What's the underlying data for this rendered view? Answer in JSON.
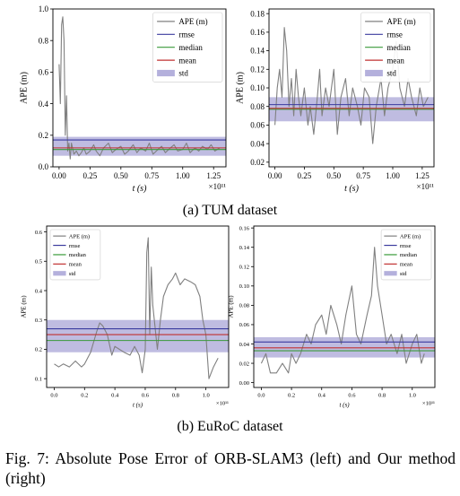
{
  "subcaptions": {
    "a": "(a) TUM dataset",
    "b": "(b) EuRoC dataset"
  },
  "figure_caption": "Fig. 7: Absolute Pose Error of ORB-SLAM3 (left) and Our method (right)",
  "colors": {
    "ape": "#808080",
    "rmse": "#3b3b9f",
    "median": "#3a9a3a",
    "mean": "#c03030",
    "std": "#b4b0dc",
    "axis": "#000000"
  },
  "chart_data": [
    {
      "type": "line",
      "panel": "TUM dataset - ORB-SLAM3 (left)",
      "ylabel": "APE (m)",
      "xlabel": "t (s)",
      "x_multiplier": "×10¹¹",
      "xlim": [
        -0.05,
        1.35
      ],
      "ylim": [
        0,
        1.0
      ],
      "xticks": [
        0.0,
        0.25,
        0.5,
        0.75,
        1.0,
        1.25
      ],
      "xtick_labels": [
        "0.00",
        "0.25",
        "0.50",
        "0.75",
        "1.00",
        "1.25"
      ],
      "yticks": [
        0.0,
        0.2,
        0.4,
        0.6,
        0.8,
        1.0
      ],
      "ytick_labels": [
        "0.0",
        "0.2",
        "0.4",
        "0.6",
        "0.8",
        "1.0"
      ],
      "legend": [
        "APE (m)",
        "rmse",
        "median",
        "mean",
        "std"
      ],
      "legend_position": "top-right",
      "stats": {
        "rmse": 0.17,
        "median": 0.11,
        "mean": 0.12,
        "std_low": 0.07,
        "std_high": 0.19
      },
      "series": [
        {
          "x": [
            0.0,
            0.01,
            0.02,
            0.03,
            0.04,
            0.05,
            0.06,
            0.07,
            0.08,
            0.09,
            0.1,
            0.12,
            0.14,
            0.16,
            0.18,
            0.2,
            0.22,
            0.25,
            0.28,
            0.3,
            0.33,
            0.36,
            0.4,
            0.43,
            0.46,
            0.5,
            0.53,
            0.56,
            0.6,
            0.63,
            0.66,
            0.7,
            0.73,
            0.76,
            0.8,
            0.83,
            0.86,
            0.9,
            0.93,
            0.96,
            1.0,
            1.03,
            1.06,
            1.1,
            1.13,
            1.16,
            1.2,
            1.23,
            1.26,
            1.3
          ],
          "y": [
            0.65,
            0.4,
            0.9,
            0.95,
            0.8,
            0.2,
            0.45,
            0.1,
            0.15,
            0.05,
            0.15,
            0.08,
            0.1,
            0.07,
            0.09,
            0.12,
            0.08,
            0.1,
            0.14,
            0.1,
            0.07,
            0.12,
            0.15,
            0.09,
            0.11,
            0.13,
            0.08,
            0.1,
            0.14,
            0.09,
            0.12,
            0.1,
            0.15,
            0.08,
            0.11,
            0.13,
            0.09,
            0.12,
            0.14,
            0.1,
            0.11,
            0.15,
            0.09,
            0.12,
            0.1,
            0.13,
            0.11,
            0.14,
            0.1,
            0.12
          ]
        }
      ]
    },
    {
      "type": "line",
      "panel": "TUM dataset - Our method (right)",
      "ylabel": "APE (m)",
      "xlabel": "t (s)",
      "x_multiplier": "×10¹¹",
      "xlim": [
        -0.05,
        1.35
      ],
      "ylim": [
        0.015,
        0.185
      ],
      "xticks": [
        0.0,
        0.25,
        0.5,
        0.75,
        1.0,
        1.25
      ],
      "xtick_labels": [
        "0.00",
        "0.25",
        "0.50",
        "0.75",
        "1.00",
        "1.25"
      ],
      "yticks": [
        0.02,
        0.04,
        0.06,
        0.08,
        0.1,
        0.12,
        0.14,
        0.16,
        0.18
      ],
      "ytick_labels": [
        "0.02",
        "0.04",
        "0.06",
        "0.08",
        "0.10",
        "0.12",
        "0.14",
        "0.16",
        "0.18"
      ],
      "legend": [
        "APE (m)",
        "rmse",
        "median",
        "mean",
        "std"
      ],
      "legend_position": "top-right",
      "stats": {
        "rmse": 0.082,
        "median": 0.077,
        "mean": 0.078,
        "std_low": 0.064,
        "std_high": 0.09
      },
      "series": [
        {
          "x": [
            0.0,
            0.02,
            0.04,
            0.06,
            0.08,
            0.1,
            0.12,
            0.14,
            0.16,
            0.18,
            0.2,
            0.22,
            0.25,
            0.28,
            0.3,
            0.33,
            0.36,
            0.38,
            0.4,
            0.43,
            0.46,
            0.5,
            0.53,
            0.56,
            0.6,
            0.63,
            0.66,
            0.7,
            0.73,
            0.76,
            0.8,
            0.83,
            0.86,
            0.9,
            0.93,
            0.96,
            1.0,
            1.03,
            1.06,
            1.1,
            1.13,
            1.16,
            1.2,
            1.23,
            1.26,
            1.3
          ],
          "y": [
            0.06,
            0.1,
            0.12,
            0.09,
            0.165,
            0.14,
            0.08,
            0.11,
            0.07,
            0.12,
            0.09,
            0.07,
            0.1,
            0.06,
            0.08,
            0.05,
            0.09,
            0.12,
            0.07,
            0.1,
            0.08,
            0.12,
            0.05,
            0.09,
            0.11,
            0.07,
            0.1,
            0.08,
            0.06,
            0.1,
            0.09,
            0.04,
            0.08,
            0.11,
            0.07,
            0.1,
            0.12,
            0.15,
            0.1,
            0.08,
            0.11,
            0.09,
            0.07,
            0.1,
            0.08,
            0.09
          ]
        }
      ]
    },
    {
      "type": "line",
      "panel": "EuRoC dataset - ORB-SLAM3 (left)",
      "ylabel": "APE (m)",
      "xlabel": "t (s)",
      "x_multiplier": "×10¹¹",
      "xlim": [
        -0.05,
        1.15
      ],
      "ylim": [
        0.07,
        0.62
      ],
      "xticks": [
        0.0,
        0.2,
        0.4,
        0.6,
        0.8,
        1.0
      ],
      "xtick_labels": [
        "0.0",
        "0.2",
        "0.4",
        "0.6",
        "0.8",
        "1.0"
      ],
      "yticks": [
        0.1,
        0.2,
        0.3,
        0.4,
        0.5,
        0.6
      ],
      "ytick_labels": [
        "0.1",
        "0.2",
        "0.3",
        "0.4",
        "0.5",
        "0.6"
      ],
      "legend": [
        "APE (m)",
        "rmse",
        "median",
        "mean",
        "std"
      ],
      "legend_position": "top-left",
      "stats": {
        "rmse": 0.27,
        "median": 0.23,
        "mean": 0.25,
        "std_low": 0.19,
        "std_high": 0.3
      },
      "series": [
        {
          "x": [
            0.0,
            0.03,
            0.06,
            0.1,
            0.14,
            0.18,
            0.2,
            0.24,
            0.28,
            0.3,
            0.32,
            0.35,
            0.38,
            0.4,
            0.43,
            0.46,
            0.5,
            0.53,
            0.56,
            0.58,
            0.6,
            0.61,
            0.62,
            0.63,
            0.64,
            0.65,
            0.68,
            0.7,
            0.72,
            0.75,
            0.78,
            0.8,
            0.83,
            0.86,
            0.9,
            0.93,
            0.96,
            0.98,
            1.0,
            1.02,
            1.05,
            1.08
          ],
          "y": [
            0.15,
            0.14,
            0.15,
            0.14,
            0.16,
            0.14,
            0.15,
            0.19,
            0.26,
            0.29,
            0.28,
            0.25,
            0.18,
            0.21,
            0.2,
            0.19,
            0.18,
            0.21,
            0.18,
            0.12,
            0.2,
            0.53,
            0.58,
            0.25,
            0.48,
            0.35,
            0.2,
            0.3,
            0.38,
            0.42,
            0.44,
            0.46,
            0.42,
            0.44,
            0.43,
            0.42,
            0.38,
            0.3,
            0.25,
            0.1,
            0.14,
            0.17
          ]
        }
      ]
    },
    {
      "type": "line",
      "panel": "EuRoC dataset - Our method (right)",
      "ylabel": "APE (m)",
      "xlabel": "t (s)",
      "x_multiplier": "×10¹¹",
      "xlim": [
        -0.05,
        1.15
      ],
      "ylim": [
        -0.005,
        0.162
      ],
      "xticks": [
        0.0,
        0.2,
        0.4,
        0.6,
        0.8,
        1.0
      ],
      "xtick_labels": [
        "0.0",
        "0.2",
        "0.4",
        "0.6",
        "0.8",
        "1.0"
      ],
      "yticks": [
        0.0,
        0.02,
        0.04,
        0.06,
        0.08,
        0.1,
        0.12,
        0.14,
        0.16
      ],
      "ytick_labels": [
        "0.00",
        "0.02",
        "0.04",
        "0.06",
        "0.08",
        "0.10",
        "0.12",
        "0.14",
        "0.16"
      ],
      "legend": [
        "APE (m)",
        "rmse",
        "median",
        "mean",
        "std"
      ],
      "legend_position": "top-right",
      "stats": {
        "rmse": 0.042,
        "median": 0.033,
        "mean": 0.036,
        "std_low": 0.026,
        "std_high": 0.047
      },
      "series": [
        {
          "x": [
            0.0,
            0.03,
            0.06,
            0.1,
            0.14,
            0.18,
            0.2,
            0.23,
            0.26,
            0.3,
            0.33,
            0.36,
            0.4,
            0.43,
            0.46,
            0.5,
            0.53,
            0.56,
            0.6,
            0.63,
            0.66,
            0.7,
            0.73,
            0.75,
            0.77,
            0.8,
            0.83,
            0.86,
            0.9,
            0.93,
            0.96,
            1.0,
            1.03,
            1.06,
            1.08
          ],
          "y": [
            0.02,
            0.03,
            0.01,
            0.01,
            0.02,
            0.01,
            0.03,
            0.02,
            0.03,
            0.05,
            0.04,
            0.06,
            0.07,
            0.05,
            0.08,
            0.06,
            0.04,
            0.07,
            0.1,
            0.05,
            0.04,
            0.07,
            0.09,
            0.14,
            0.1,
            0.07,
            0.04,
            0.05,
            0.03,
            0.05,
            0.02,
            0.04,
            0.05,
            0.02,
            0.03
          ]
        }
      ]
    }
  ]
}
